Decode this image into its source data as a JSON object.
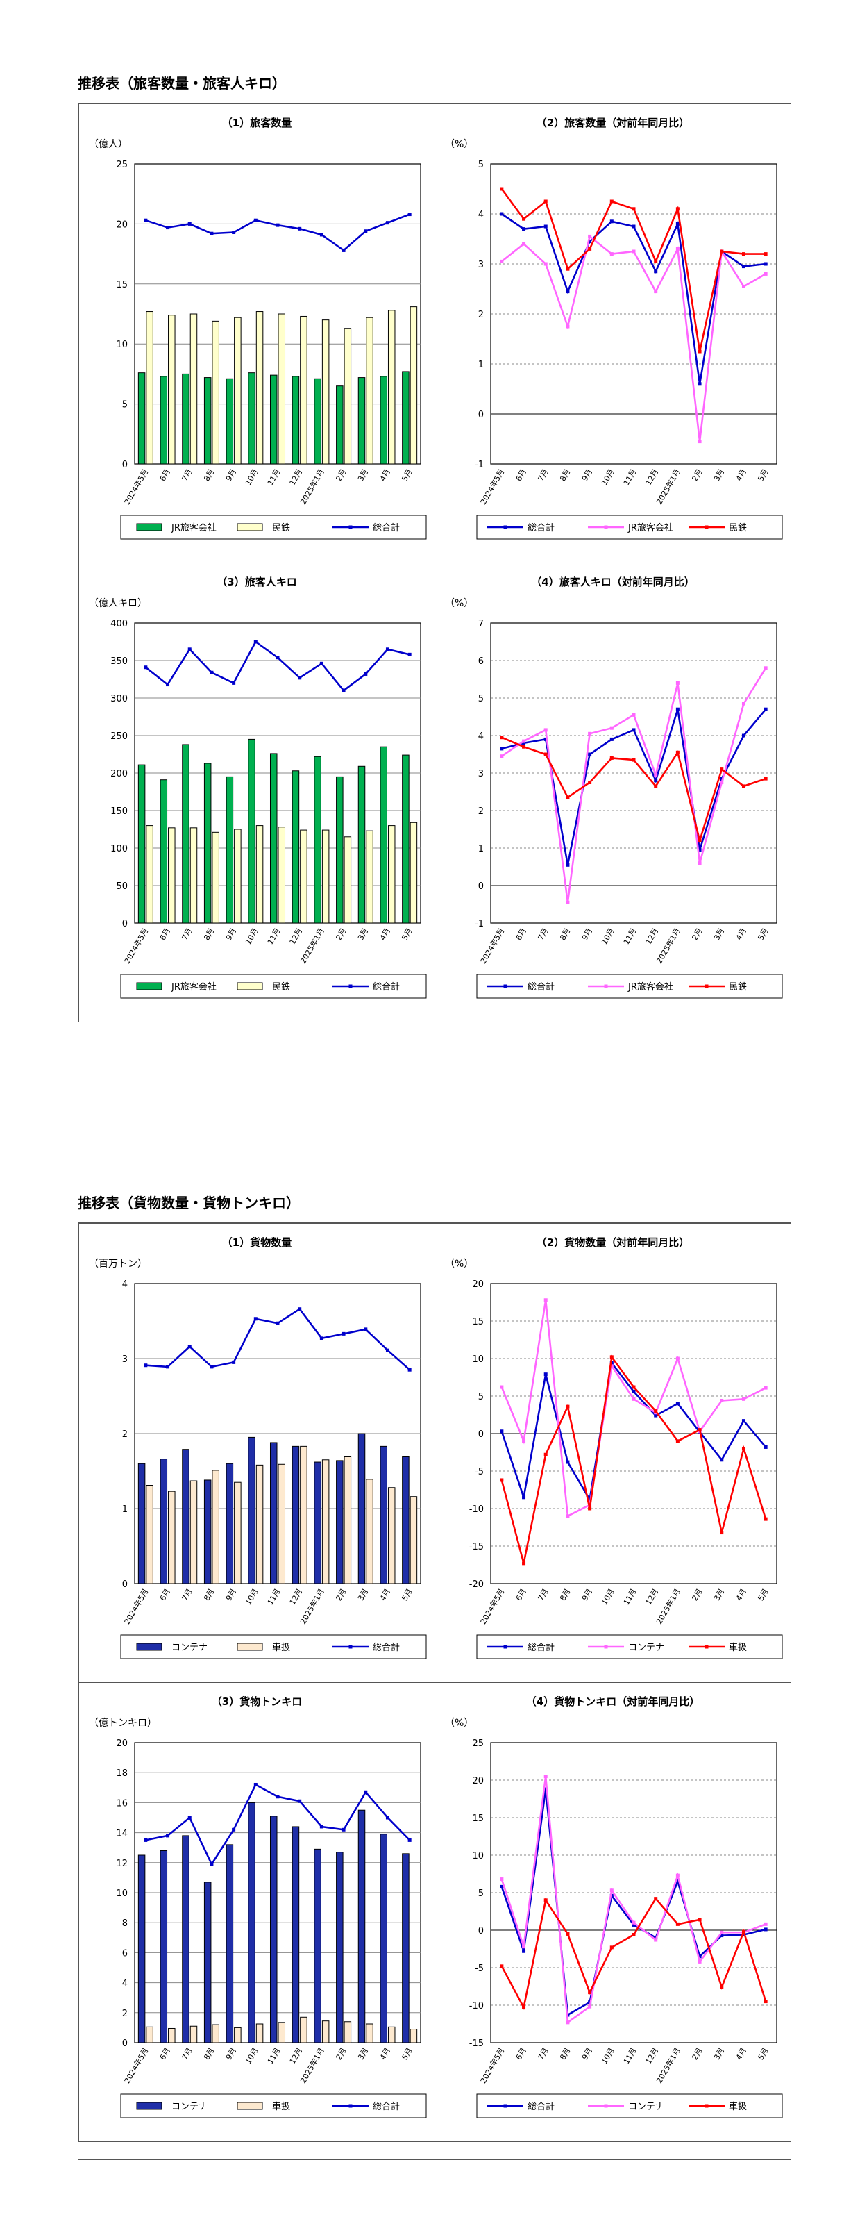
{
  "sections": [
    {
      "title": "推移表（旅客数量・旅客人キロ）"
    },
    {
      "title": "推移表（貨物数量・貨物トンキロ）"
    }
  ],
  "colors": {
    "green": "#00b050",
    "cream": "#ffffcc",
    "blue": "#0000cc",
    "red": "#ff0000",
    "pink": "#ff66ff",
    "navy": "#1f2ea8",
    "lightcream": "#fde9cf"
  },
  "chart_data": [
    {
      "type": "bar",
      "title": "（1）旅客数量",
      "unit": "（億人）",
      "categories": [
        "2024年5月",
        "6月",
        "7月",
        "8月",
        "9月",
        "10月",
        "11月",
        "12月",
        "2025年1月",
        "2月",
        "3月",
        "4月",
        "5月"
      ],
      "ylim": [
        0,
        25
      ],
      "ystep": 5,
      "grid": true,
      "legend": "bottom",
      "bars": [
        {
          "name": "JR旅客会社",
          "color": "#00b050",
          "values": [
            7.6,
            7.3,
            7.5,
            7.2,
            7.1,
            7.6,
            7.4,
            7.3,
            7.1,
            6.5,
            7.2,
            7.3,
            7.7
          ]
        },
        {
          "name": "民鉄",
          "color": "#ffffcc",
          "values": [
            12.7,
            12.4,
            12.5,
            11.9,
            12.2,
            12.7,
            12.5,
            12.3,
            12.0,
            11.3,
            12.2,
            12.8,
            13.1
          ]
        }
      ],
      "lines": [
        {
          "name": "総合計",
          "color": "#0000cc",
          "values": [
            20.3,
            19.7,
            20.0,
            19.2,
            19.3,
            20.3,
            19.9,
            19.6,
            19.1,
            17.8,
            19.4,
            20.1,
            20.8
          ]
        }
      ],
      "legend_order": [
        "JR旅客会社",
        "民鉄",
        "総合計"
      ]
    },
    {
      "type": "line",
      "title": "（2）旅客数量（対前年同月比）",
      "unit": "（%）",
      "categories": [
        "2024年5月",
        "6月",
        "7月",
        "8月",
        "9月",
        "10月",
        "11月",
        "12月",
        "2025年1月",
        "2月",
        "3月",
        "4月",
        "5月"
      ],
      "ylim": [
        -1,
        5
      ],
      "ystep": 1,
      "grid": true,
      "legend": "bottom",
      "lines": [
        {
          "name": "総合計",
          "color": "#0000cc",
          "values": [
            4.0,
            3.7,
            3.75,
            2.45,
            3.45,
            3.85,
            3.75,
            2.85,
            3.8,
            0.6,
            3.25,
            2.95,
            3.0
          ]
        },
        {
          "name": "JR旅客会社",
          "color": "#ff66ff",
          "values": [
            3.05,
            3.4,
            3.0,
            1.75,
            3.55,
            3.2,
            3.25,
            2.45,
            3.3,
            -0.55,
            3.25,
            2.55,
            2.8
          ]
        },
        {
          "name": "民鉄",
          "color": "#ff0000",
          "values": [
            4.5,
            3.9,
            4.25,
            2.9,
            3.3,
            4.25,
            4.1,
            3.05,
            4.1,
            1.25,
            3.25,
            3.2,
            3.2
          ]
        }
      ]
    },
    {
      "type": "bar",
      "title": "（3）旅客人キロ",
      "unit": "（億人キロ）",
      "categories": [
        "2024年5月",
        "6月",
        "7月",
        "8月",
        "9月",
        "10月",
        "11月",
        "12月",
        "2025年1月",
        "2月",
        "3月",
        "4月",
        "5月"
      ],
      "ylim": [
        0,
        400
      ],
      "ystep": 50,
      "grid": true,
      "legend": "bottom",
      "bars": [
        {
          "name": "JR旅客会社",
          "color": "#00b050",
          "values": [
            211,
            191,
            238,
            213,
            195,
            245,
            226,
            203,
            222,
            195,
            209,
            235,
            224
          ]
        },
        {
          "name": "民鉄",
          "color": "#ffffcc",
          "values": [
            130,
            127,
            127,
            121,
            125,
            130,
            128,
            124,
            124,
            115,
            123,
            130,
            134
          ]
        }
      ],
      "lines": [
        {
          "name": "総合計",
          "color": "#0000cc",
          "values": [
            341,
            318,
            365,
            334,
            320,
            375,
            354,
            327,
            346,
            310,
            332,
            365,
            358
          ]
        }
      ],
      "legend_order": [
        "JR旅客会社",
        "民鉄",
        "総合計"
      ]
    },
    {
      "type": "line",
      "title": "（4）旅客人キロ（対前年同月比）",
      "unit": "（%）",
      "categories": [
        "2024年5月",
        "6月",
        "7月",
        "8月",
        "9月",
        "10月",
        "11月",
        "12月",
        "2025年1月",
        "2月",
        "3月",
        "4月",
        "5月"
      ],
      "ylim": [
        -1,
        7
      ],
      "ystep": 1,
      "grid": true,
      "legend": "bottom",
      "lines": [
        {
          "name": "総合計",
          "color": "#0000cc",
          "values": [
            3.65,
            3.8,
            3.9,
            0.55,
            3.5,
            3.9,
            4.15,
            2.8,
            4.7,
            0.95,
            2.85,
            4.0,
            4.7
          ]
        },
        {
          "name": "JR旅客会社",
          "color": "#ff66ff",
          "values": [
            3.45,
            3.85,
            4.15,
            -0.45,
            4.05,
            4.2,
            4.55,
            2.95,
            5.4,
            0.6,
            2.75,
            4.85,
            5.8
          ]
        },
        {
          "name": "民鉄",
          "color": "#ff0000",
          "values": [
            3.95,
            3.7,
            3.5,
            2.35,
            2.75,
            3.4,
            3.35,
            2.65,
            3.55,
            1.2,
            3.1,
            2.65,
            2.85
          ]
        }
      ]
    },
    {
      "type": "bar",
      "title": "（1）貨物数量",
      "unit": "（百万トン）",
      "categories": [
        "2024年5月",
        "6月",
        "7月",
        "8月",
        "9月",
        "10月",
        "11月",
        "12月",
        "2025年1月",
        "2月",
        "3月",
        "4月",
        "5月"
      ],
      "ylim": [
        0,
        4
      ],
      "ystep": 1,
      "grid": true,
      "legend": "bottom",
      "bars": [
        {
          "name": "コンテナ",
          "color": "#1f2ea8",
          "values": [
            1.6,
            1.66,
            1.79,
            1.38,
            1.6,
            1.95,
            1.88,
            1.83,
            1.62,
            1.64,
            2.0,
            1.83,
            1.69
          ]
        },
        {
          "name": "車扱",
          "color": "#fde9cf",
          "values": [
            1.31,
            1.23,
            1.37,
            1.51,
            1.35,
            1.58,
            1.59,
            1.83,
            1.65,
            1.69,
            1.39,
            1.28,
            1.16
          ]
        }
      ],
      "lines": [
        {
          "name": "総合計",
          "color": "#0000cc",
          "values": [
            2.91,
            2.89,
            3.16,
            2.89,
            2.95,
            3.53,
            3.47,
            3.66,
            3.27,
            3.33,
            3.39,
            3.11,
            2.85
          ]
        }
      ],
      "legend_order": [
        "コンテナ",
        "車扱",
        "総合計"
      ]
    },
    {
      "type": "line",
      "title": "（2）貨物数量（対前年同月比）",
      "unit": "（%）",
      "categories": [
        "2024年5月",
        "6月",
        "7月",
        "8月",
        "9月",
        "10月",
        "11月",
        "12月",
        "2025年1月",
        "2月",
        "3月",
        "4月",
        "5月"
      ],
      "ylim": [
        -20,
        20
      ],
      "ystep": 5,
      "grid": true,
      "legend": "bottom",
      "lines": [
        {
          "name": "総合計",
          "color": "#0000cc",
          "values": [
            0.3,
            -8.5,
            7.9,
            -3.8,
            -8.8,
            9.4,
            5.6,
            2.4,
            4.0,
            0.2,
            -3.5,
            1.7,
            -1.8
          ]
        },
        {
          "name": "コンテナ",
          "color": "#ff66ff",
          "values": [
            6.2,
            -1.0,
            17.8,
            -11.0,
            -9.5,
            9.0,
            4.6,
            2.8,
            10.0,
            0.3,
            4.4,
            4.6,
            6.1
          ]
        },
        {
          "name": "車扱",
          "color": "#ff0000",
          "values": [
            -6.2,
            -17.3,
            -2.8,
            3.6,
            -10.0,
            10.2,
            6.2,
            3.0,
            -1.0,
            0.5,
            -13.2,
            -2.0,
            -11.4
          ]
        }
      ]
    },
    {
      "type": "bar",
      "title": "（3）貨物トンキロ",
      "unit": "（億トンキロ）",
      "categories": [
        "2024年5月",
        "6月",
        "7月",
        "8月",
        "9月",
        "10月",
        "11月",
        "12月",
        "2025年1月",
        "2月",
        "3月",
        "4月",
        "5月"
      ],
      "ylim": [
        0,
        20
      ],
      "ystep": 2,
      "grid": true,
      "legend": "bottom",
      "bars": [
        {
          "name": "コンテナ",
          "color": "#1f2ea8",
          "values": [
            12.5,
            12.8,
            13.8,
            10.7,
            13.2,
            16.0,
            15.1,
            14.4,
            12.9,
            12.7,
            15.5,
            13.9,
            12.6
          ]
        },
        {
          "name": "車扱",
          "color": "#fde9cf",
          "values": [
            1.05,
            0.95,
            1.1,
            1.2,
            1.0,
            1.25,
            1.35,
            1.7,
            1.45,
            1.4,
            1.25,
            1.05,
            0.9
          ]
        }
      ],
      "lines": [
        {
          "name": "総合計",
          "color": "#0000cc",
          "values": [
            13.5,
            13.8,
            15.0,
            11.9,
            14.2,
            17.2,
            16.4,
            16.1,
            14.4,
            14.2,
            16.7,
            15.0,
            13.5
          ]
        }
      ],
      "legend_order": [
        "コンテナ",
        "車扱",
        "総合計"
      ]
    },
    {
      "type": "line",
      "title": "（4）貨物トンキロ（対前年同月比）",
      "unit": "（%）",
      "categories": [
        "2024年5月",
        "6月",
        "7月",
        "8月",
        "9月",
        "10月",
        "11月",
        "12月",
        "2025年1月",
        "2月",
        "3月",
        "4月",
        "5月"
      ],
      "ylim": [
        -15,
        25
      ],
      "ystep": 5,
      "grid": true,
      "legend": "bottom",
      "lines": [
        {
          "name": "総合計",
          "color": "#0000cc",
          "values": [
            5.8,
            -2.8,
            18.8,
            -11.3,
            -9.6,
            4.6,
            0.7,
            -1.0,
            6.5,
            -3.5,
            -0.7,
            -0.6,
            0.1
          ]
        },
        {
          "name": "コンテナ",
          "color": "#ff66ff",
          "values": [
            6.8,
            -2.2,
            20.5,
            -12.3,
            -10.2,
            5.3,
            1.0,
            -1.3,
            7.3,
            -4.2,
            -0.3,
            -0.3,
            0.8
          ]
        },
        {
          "name": "車扱",
          "color": "#ff0000",
          "values": [
            -4.8,
            -10.3,
            4.0,
            -0.5,
            -8.3,
            -2.3,
            -0.6,
            4.2,
            0.8,
            1.4,
            -7.6,
            -0.2,
            -9.5
          ]
        }
      ]
    }
  ]
}
